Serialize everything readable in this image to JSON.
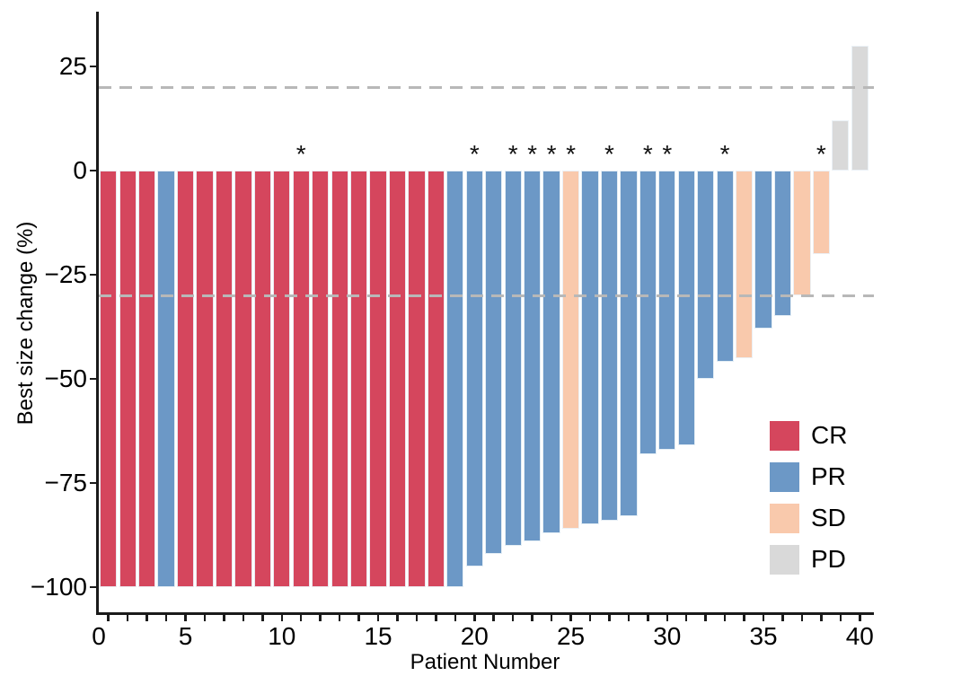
{
  "chart_data": {
    "type": "bar",
    "title": "",
    "xlabel": "Patient Number",
    "ylabel": "Best size change (%)",
    "xlim": [
      0,
      40.3
    ],
    "ylim": [
      -107,
      38
    ],
    "x_major_labels": [
      0,
      5,
      10,
      15,
      20,
      25,
      30,
      35,
      40
    ],
    "x_minor_tick_per_bar": true,
    "y_ticks": [
      25,
      0,
      -25,
      -50,
      -75,
      -100
    ],
    "grid": false,
    "annotation_symbol": "*",
    "annotation_meaning_positions": [
      11,
      20,
      22,
      23,
      24,
      25,
      27,
      29,
      30,
      33,
      38
    ],
    "reference_lines": [
      {
        "y": 20,
        "style": "dashed",
        "color": "#b8b8b8"
      },
      {
        "y": -30,
        "style": "dashed",
        "color": "#b8b8b8"
      }
    ],
    "colors": {
      "CR": "#d5465d",
      "PR": "#6c98c6",
      "SD": "#f9c9ac",
      "PD": "#d9d9d9"
    },
    "axis_color": "#1a1a1a",
    "legend_position": "inside-right",
    "legend": [
      {
        "label": "CR",
        "color": "#d5465d"
      },
      {
        "label": "PR",
        "color": "#6c98c6"
      },
      {
        "label": "SD",
        "color": "#f9c9ac"
      },
      {
        "label": "PD",
        "color": "#d9d9d9"
      }
    ],
    "patients": [
      {
        "n": 1,
        "value": -100,
        "response": "CR",
        "star": false
      },
      {
        "n": 2,
        "value": -100,
        "response": "CR",
        "star": false
      },
      {
        "n": 3,
        "value": -100,
        "response": "CR",
        "star": false
      },
      {
        "n": 4,
        "value": -100,
        "response": "PR",
        "star": false
      },
      {
        "n": 5,
        "value": -100,
        "response": "CR",
        "star": false
      },
      {
        "n": 6,
        "value": -100,
        "response": "CR",
        "star": false
      },
      {
        "n": 7,
        "value": -100,
        "response": "CR",
        "star": false
      },
      {
        "n": 8,
        "value": -100,
        "response": "CR",
        "star": false
      },
      {
        "n": 9,
        "value": -100,
        "response": "CR",
        "star": false
      },
      {
        "n": 10,
        "value": -100,
        "response": "CR",
        "star": false
      },
      {
        "n": 11,
        "value": -100,
        "response": "CR",
        "star": true
      },
      {
        "n": 12,
        "value": -100,
        "response": "CR",
        "star": false
      },
      {
        "n": 13,
        "value": -100,
        "response": "CR",
        "star": false
      },
      {
        "n": 14,
        "value": -100,
        "response": "CR",
        "star": false
      },
      {
        "n": 15,
        "value": -100,
        "response": "CR",
        "star": false
      },
      {
        "n": 16,
        "value": -100,
        "response": "CR",
        "star": false
      },
      {
        "n": 17,
        "value": -100,
        "response": "CR",
        "star": false
      },
      {
        "n": 18,
        "value": -100,
        "response": "CR",
        "star": false
      },
      {
        "n": 19,
        "value": -100,
        "response": "PR",
        "star": false
      },
      {
        "n": 20,
        "value": -95,
        "response": "PR",
        "star": true
      },
      {
        "n": 21,
        "value": -92,
        "response": "PR",
        "star": false
      },
      {
        "n": 22,
        "value": -90,
        "response": "PR",
        "star": true
      },
      {
        "n": 23,
        "value": -89,
        "response": "PR",
        "star": true
      },
      {
        "n": 24,
        "value": -87,
        "response": "PR",
        "star": true
      },
      {
        "n": 25,
        "value": -86,
        "response": "SD",
        "star": true
      },
      {
        "n": 26,
        "value": -85,
        "response": "PR",
        "star": false
      },
      {
        "n": 27,
        "value": -84,
        "response": "PR",
        "star": true
      },
      {
        "n": 28,
        "value": -83,
        "response": "PR",
        "star": false
      },
      {
        "n": 29,
        "value": -68,
        "response": "PR",
        "star": true
      },
      {
        "n": 30,
        "value": -67,
        "response": "PR",
        "star": true
      },
      {
        "n": 31,
        "value": -66,
        "response": "PR",
        "star": false
      },
      {
        "n": 32,
        "value": -50,
        "response": "PR",
        "star": false
      },
      {
        "n": 33,
        "value": -46,
        "response": "PR",
        "star": true
      },
      {
        "n": 34,
        "value": -45,
        "response": "SD",
        "star": false
      },
      {
        "n": 35,
        "value": -38,
        "response": "PR",
        "star": false
      },
      {
        "n": 36,
        "value": -35,
        "response": "PR",
        "star": false
      },
      {
        "n": 37,
        "value": -30,
        "response": "SD",
        "star": false
      },
      {
        "n": 38,
        "value": -20,
        "response": "SD",
        "star": true
      },
      {
        "n": 39,
        "value": 12,
        "response": "PD",
        "star": false
      },
      {
        "n": 40,
        "value": 30,
        "response": "PD",
        "star": false
      }
    ]
  }
}
